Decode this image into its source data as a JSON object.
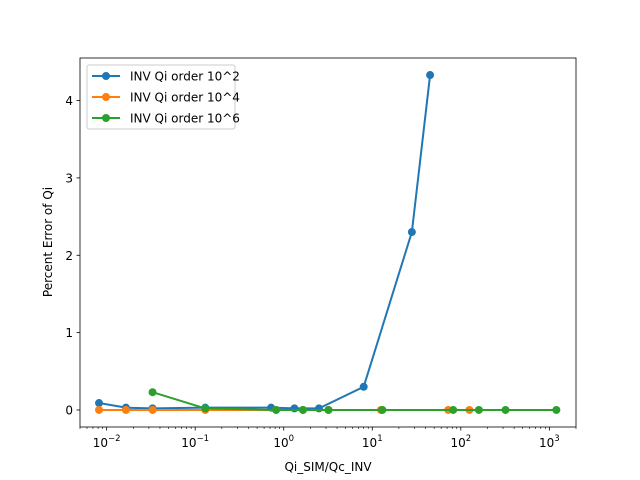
{
  "chart_data": {
    "type": "line",
    "title": "",
    "xlabel": "Qi_SIM/Qc_INV",
    "ylabel": "Percent Error of Qi",
    "x_scale": "log",
    "xlim": [
      0.005,
      2000
    ],
    "ylim": [
      -0.22,
      4.55
    ],
    "x_ticks": [
      {
        "value": 0.01,
        "base": "10",
        "exp": "−2"
      },
      {
        "value": 0.1,
        "base": "10",
        "exp": "−1"
      },
      {
        "value": 1,
        "base": "10",
        "exp": "0"
      },
      {
        "value": 10,
        "base": "10",
        "exp": "1"
      },
      {
        "value": 100,
        "base": "10",
        "exp": "2"
      },
      {
        "value": 1000,
        "base": "10",
        "exp": "3"
      }
    ],
    "y_ticks": [
      0,
      1,
      2,
      3,
      4
    ],
    "grid": false,
    "legend_position": "top-left",
    "series": [
      {
        "name": "INV Qi order 10^2",
        "color": "#1f77b4",
        "points": [
          [
            0.0082,
            0.09
          ],
          [
            0.0165,
            0.03
          ],
          [
            0.033,
            0.02
          ],
          [
            0.13,
            0.03
          ],
          [
            0.72,
            0.03
          ],
          [
            1.32,
            0.02
          ],
          [
            2.5,
            0.02
          ],
          [
            8.0,
            0.3
          ],
          [
            28,
            2.3
          ],
          [
            45,
            4.33
          ]
        ]
      },
      {
        "name": "INV Qi order 10^4",
        "color": "#ff7f0e",
        "points": [
          [
            0.0082,
            0.0
          ],
          [
            0.0165,
            0.0
          ],
          [
            0.033,
            0.0
          ],
          [
            0.13,
            0.0
          ],
          [
            0.82,
            0.0
          ],
          [
            1.65,
            0.0
          ],
          [
            3.2,
            0.0
          ],
          [
            12.5,
            0.0
          ],
          [
            72,
            0.0
          ],
          [
            125,
            0.0
          ]
        ]
      },
      {
        "name": "INV Qi order 10^6",
        "color": "#2ca02c",
        "points": [
          [
            0.033,
            0.23
          ],
          [
            0.13,
            0.02
          ],
          [
            0.82,
            0.0
          ],
          [
            1.65,
            0.0
          ],
          [
            3.2,
            0.0
          ],
          [
            13,
            0.0
          ],
          [
            82,
            0.0
          ],
          [
            160,
            0.0
          ],
          [
            320,
            0.0
          ],
          [
            1200,
            0.0
          ]
        ]
      }
    ]
  }
}
